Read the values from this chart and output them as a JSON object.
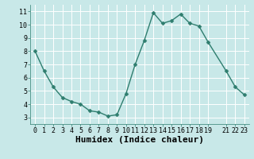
{
  "x": [
    0,
    1,
    2,
    3,
    4,
    5,
    6,
    7,
    8,
    9,
    10,
    11,
    12,
    13,
    14,
    15,
    16,
    17,
    18,
    19,
    21,
    22,
    23
  ],
  "y": [
    8.0,
    6.5,
    5.3,
    4.5,
    4.2,
    4.0,
    3.5,
    3.4,
    3.1,
    3.2,
    4.8,
    7.0,
    8.8,
    10.9,
    10.1,
    10.3,
    10.8,
    10.1,
    9.9,
    8.7,
    6.5,
    5.3,
    4.7
  ],
  "line_color": "#2e7d6e",
  "marker_color": "#2e7d6e",
  "bg_color": "#c8e8e8",
  "grid_color": "#ffffff",
  "xlabel": "Humidex (Indice chaleur)",
  "xlim": [
    -0.5,
    23.5
  ],
  "ylim": [
    2.5,
    11.5
  ],
  "yticks": [
    3,
    4,
    5,
    6,
    7,
    8,
    9,
    10,
    11
  ],
  "xticks": [
    0,
    1,
    2,
    3,
    4,
    5,
    6,
    7,
    8,
    9,
    10,
    11,
    12,
    13,
    14,
    15,
    16,
    17,
    18,
    19,
    21,
    22,
    23
  ],
  "tick_label_fontsize": 6.0,
  "xlabel_fontsize": 8.0,
  "marker_size": 2.5,
  "line_width": 1.0
}
